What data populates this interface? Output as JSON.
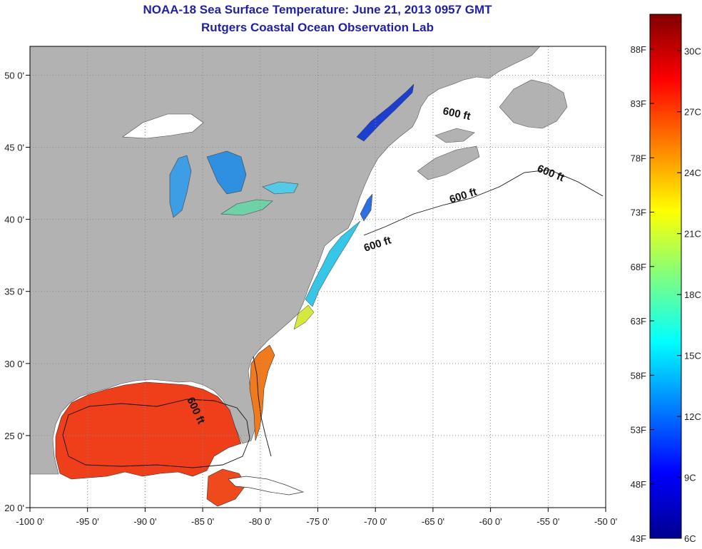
{
  "title_line1": "NOAA-18 Sea Surface Temperature:  June 21, 2013 0957 GMT",
  "title_line2": "Rutgers Coastal Ocean Observation Lab",
  "map": {
    "lon_range": [
      -100,
      -50
    ],
    "lat_range": [
      20,
      52
    ],
    "x_ticks": [
      "-100 0'",
      "-95 0'",
      "-90 0'",
      "-85 0'",
      "-80 0'",
      "-75 0'",
      "-70 0'",
      "-65 0'",
      "-60 0'",
      "-55 0'",
      "-50 0'"
    ],
    "y_ticks": [
      "50 0'",
      "45 0'",
      "40 0'",
      "35 0'",
      "30 0'",
      "25 0'",
      "20 0'"
    ],
    "contour_labels": [
      "600 ft",
      "600 ft",
      "600 ft",
      "600 ft",
      "600 ft"
    ],
    "colors": {
      "land": "#b2b2b2",
      "ocean_no_data": "#ffffff",
      "gulf_sst": "#f0401a"
    }
  },
  "colorbar": {
    "fahrenheit_labels": [
      "88F",
      "83F",
      "78F",
      "73F",
      "68F",
      "63F",
      "58F",
      "53F",
      "48F",
      "43F"
    ],
    "celsius_labels": [
      "30C",
      "27C",
      "24C",
      "21C",
      "18C",
      "15C",
      "12C",
      "9C",
      "6C"
    ],
    "colormap": "jet"
  }
}
